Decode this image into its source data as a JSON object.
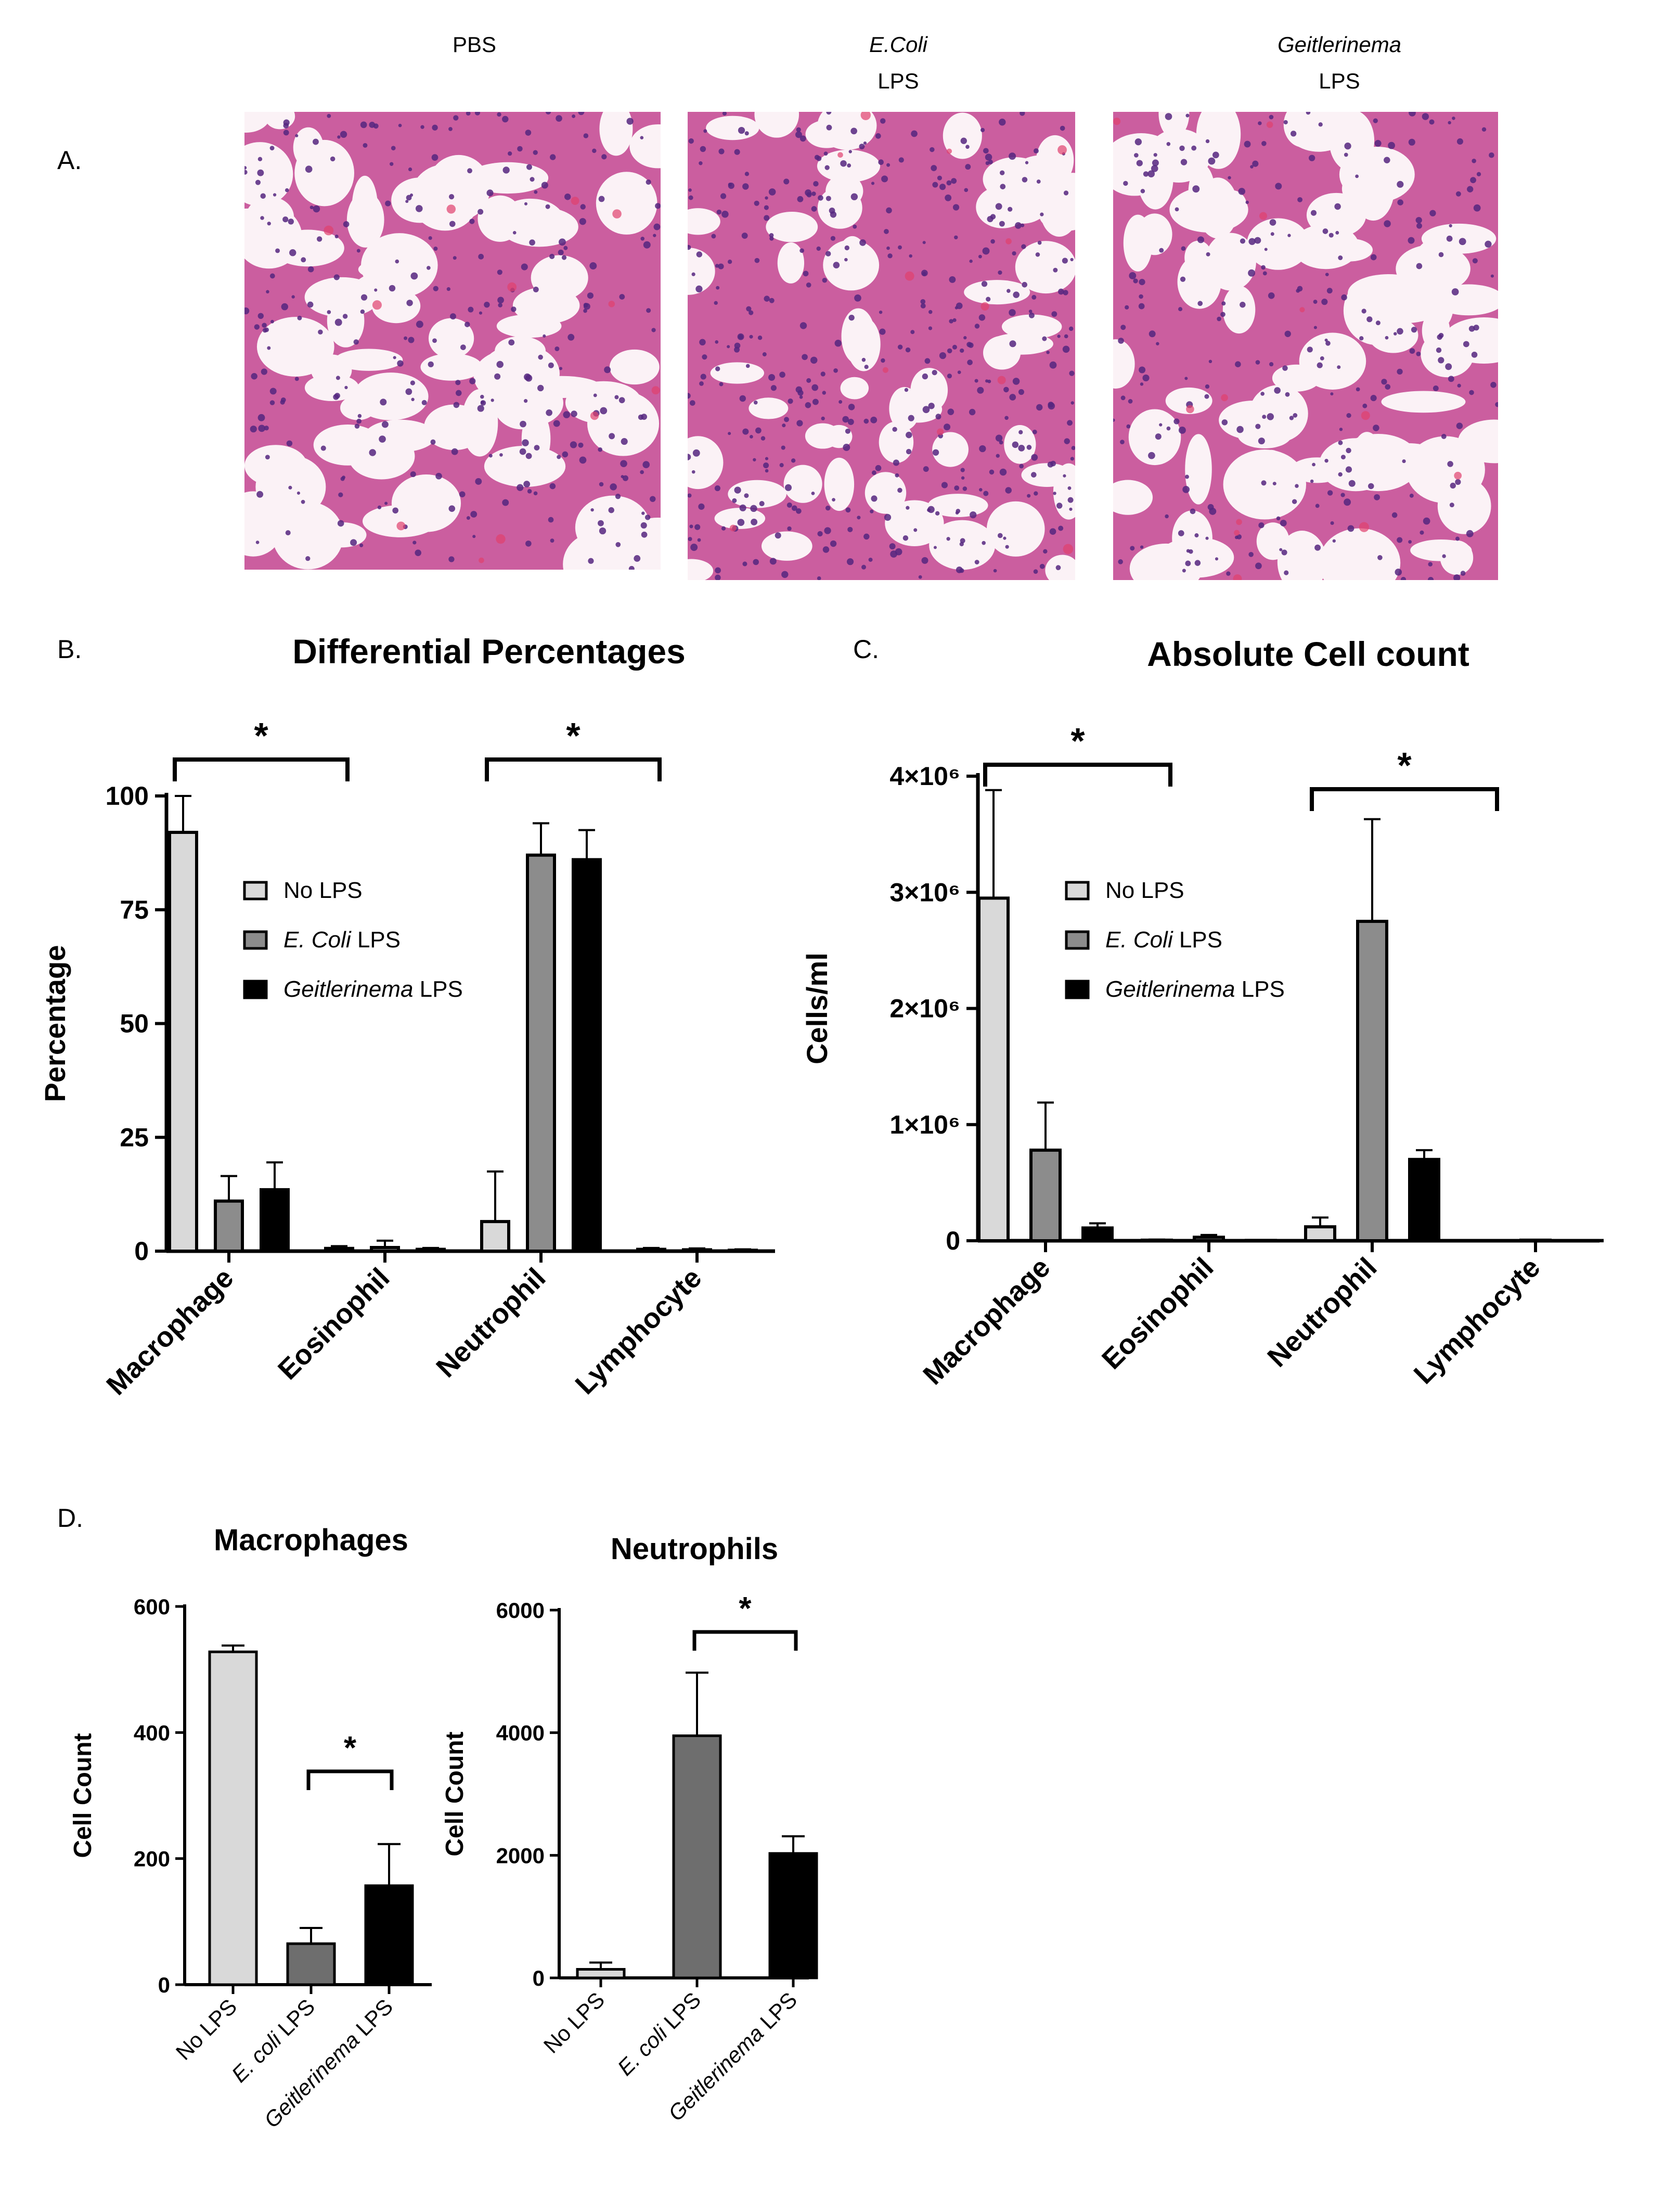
{
  "panel_labels": {
    "a": "A.",
    "b": "B.",
    "c": "C.",
    "d": "D."
  },
  "histology": {
    "columns": [
      {
        "line1": "PBS",
        "line1_italic": false,
        "line2": ""
      },
      {
        "line1": "E.Coli",
        "line1_italic": true,
        "line2": "LPS"
      },
      {
        "line1": "Geitlerinema",
        "line1_italic": true,
        "line2": "LPS"
      }
    ],
    "colors": {
      "background": "#fbf2f6",
      "tissue": "#c8559a",
      "nuclei": "#55267f",
      "rbc": "#e0406e"
    }
  },
  "legend": {
    "items": [
      {
        "italic": "",
        "text": "No LPS"
      },
      {
        "italic": "E. Coli",
        "text": " LPS"
      },
      {
        "italic": "Geitlerinema",
        "text": " LPS"
      }
    ]
  },
  "colors": {
    "no_lps": "#d9d9d9",
    "ecoli": "#8c8c8c",
    "geit": "#000000",
    "ecoli_d": "#6e6e6e"
  },
  "significance": "*",
  "chart_data": [
    {
      "id": "B",
      "type": "bar",
      "title": "Differential Percentages",
      "xlabel": "",
      "ylabel": "Percentage",
      "ylim": [
        0,
        100
      ],
      "yticks": [
        0,
        25,
        50,
        75,
        100
      ],
      "ytick_labels": [
        "0",
        "25",
        "50",
        "75",
        "100"
      ],
      "categories": [
        "Macrophage",
        "Eosinophil",
        "Neutrophil",
        "Lymphocyte"
      ],
      "series": [
        {
          "name": "No LPS",
          "values": [
            92,
            0.6,
            6.5,
            0.4
          ],
          "errors": [
            8,
            0.5,
            11,
            0.3
          ]
        },
        {
          "name": "E. Coli LPS",
          "values": [
            11,
            0.8,
            87,
            0.3
          ],
          "errors": [
            5.5,
            1.5,
            7,
            0.3
          ]
        },
        {
          "name": "Geitlerinema LPS",
          "values": [
            13.5,
            0.4,
            86,
            0.2
          ],
          "errors": [
            6,
            0.3,
            6.5,
            0.2
          ]
        }
      ],
      "significance_pairs": [
        {
          "category": "Macrophage"
        },
        {
          "category": "Neutrophil"
        }
      ],
      "legend_position": "center-left"
    },
    {
      "id": "C",
      "type": "bar",
      "title": "Absolute Cell count",
      "xlabel": "",
      "ylabel": "Cells/ml",
      "ylim": [
        0,
        4000000
      ],
      "yticks": [
        0,
        1000000,
        2000000,
        3000000,
        4000000
      ],
      "ytick_labels": [
        "0",
        "1×10⁶",
        "2×10⁶",
        "3×10⁶",
        "4×10⁶"
      ],
      "categories": [
        "Macrophage",
        "Eosinophil",
        "Neutrophil",
        "Lymphocyte"
      ],
      "series": [
        {
          "name": "No LPS",
          "values": [
            2950000,
            5000,
            120000,
            2000
          ],
          "errors": [
            930000,
            5000,
            80000,
            2000
          ]
        },
        {
          "name": "E. Coli LPS",
          "values": [
            780000,
            30000,
            2750000,
            5000
          ],
          "errors": [
            410000,
            20000,
            880000,
            3000
          ]
        },
        {
          "name": "Geitlerinema LPS",
          "values": [
            110000,
            3000,
            700000,
            2000
          ],
          "errors": [
            40000,
            2000,
            80000,
            1000
          ]
        }
      ],
      "significance_pairs": [
        {
          "category": "Macrophage"
        },
        {
          "category": "Neutrophil"
        }
      ],
      "legend_position": "center"
    },
    {
      "id": "D1",
      "type": "bar",
      "title": "Macrophages",
      "xlabel": "",
      "ylabel": "Cell Count",
      "ylim": [
        0,
        600
      ],
      "yticks": [
        0,
        200,
        400,
        600
      ],
      "ytick_labels": [
        "0",
        "200",
        "400",
        "600"
      ],
      "categories": [
        "No LPS",
        "E. coli LPS",
        "Geitlerinema LPS"
      ],
      "category_italic": [
        "",
        "E. coli",
        "Geitlerinema"
      ],
      "category_rest": [
        "No LPS",
        " LPS",
        " LPS"
      ],
      "values": [
        528,
        65,
        157
      ],
      "errors": [
        10,
        25,
        66
      ],
      "significance_between": [
        1,
        2
      ]
    },
    {
      "id": "D2",
      "type": "bar",
      "title": "Neutrophils",
      "xlabel": "",
      "ylabel": "Cell Count",
      "ylim": [
        0,
        6000
      ],
      "yticks": [
        0,
        2000,
        4000,
        6000
      ],
      "ytick_labels": [
        "0",
        "2000",
        "4000",
        "6000"
      ],
      "categories": [
        "No LPS",
        "E. coli LPS",
        "Geitlerinema LPS"
      ],
      "category_italic": [
        "",
        "E. coli",
        "Geitlerinema"
      ],
      "category_rest": [
        "No LPS",
        " LPS",
        " LPS"
      ],
      "values": [
        140,
        3950,
        2030
      ],
      "errors": [
        110,
        1030,
        280
      ],
      "significance_between": [
        1,
        2
      ]
    }
  ]
}
